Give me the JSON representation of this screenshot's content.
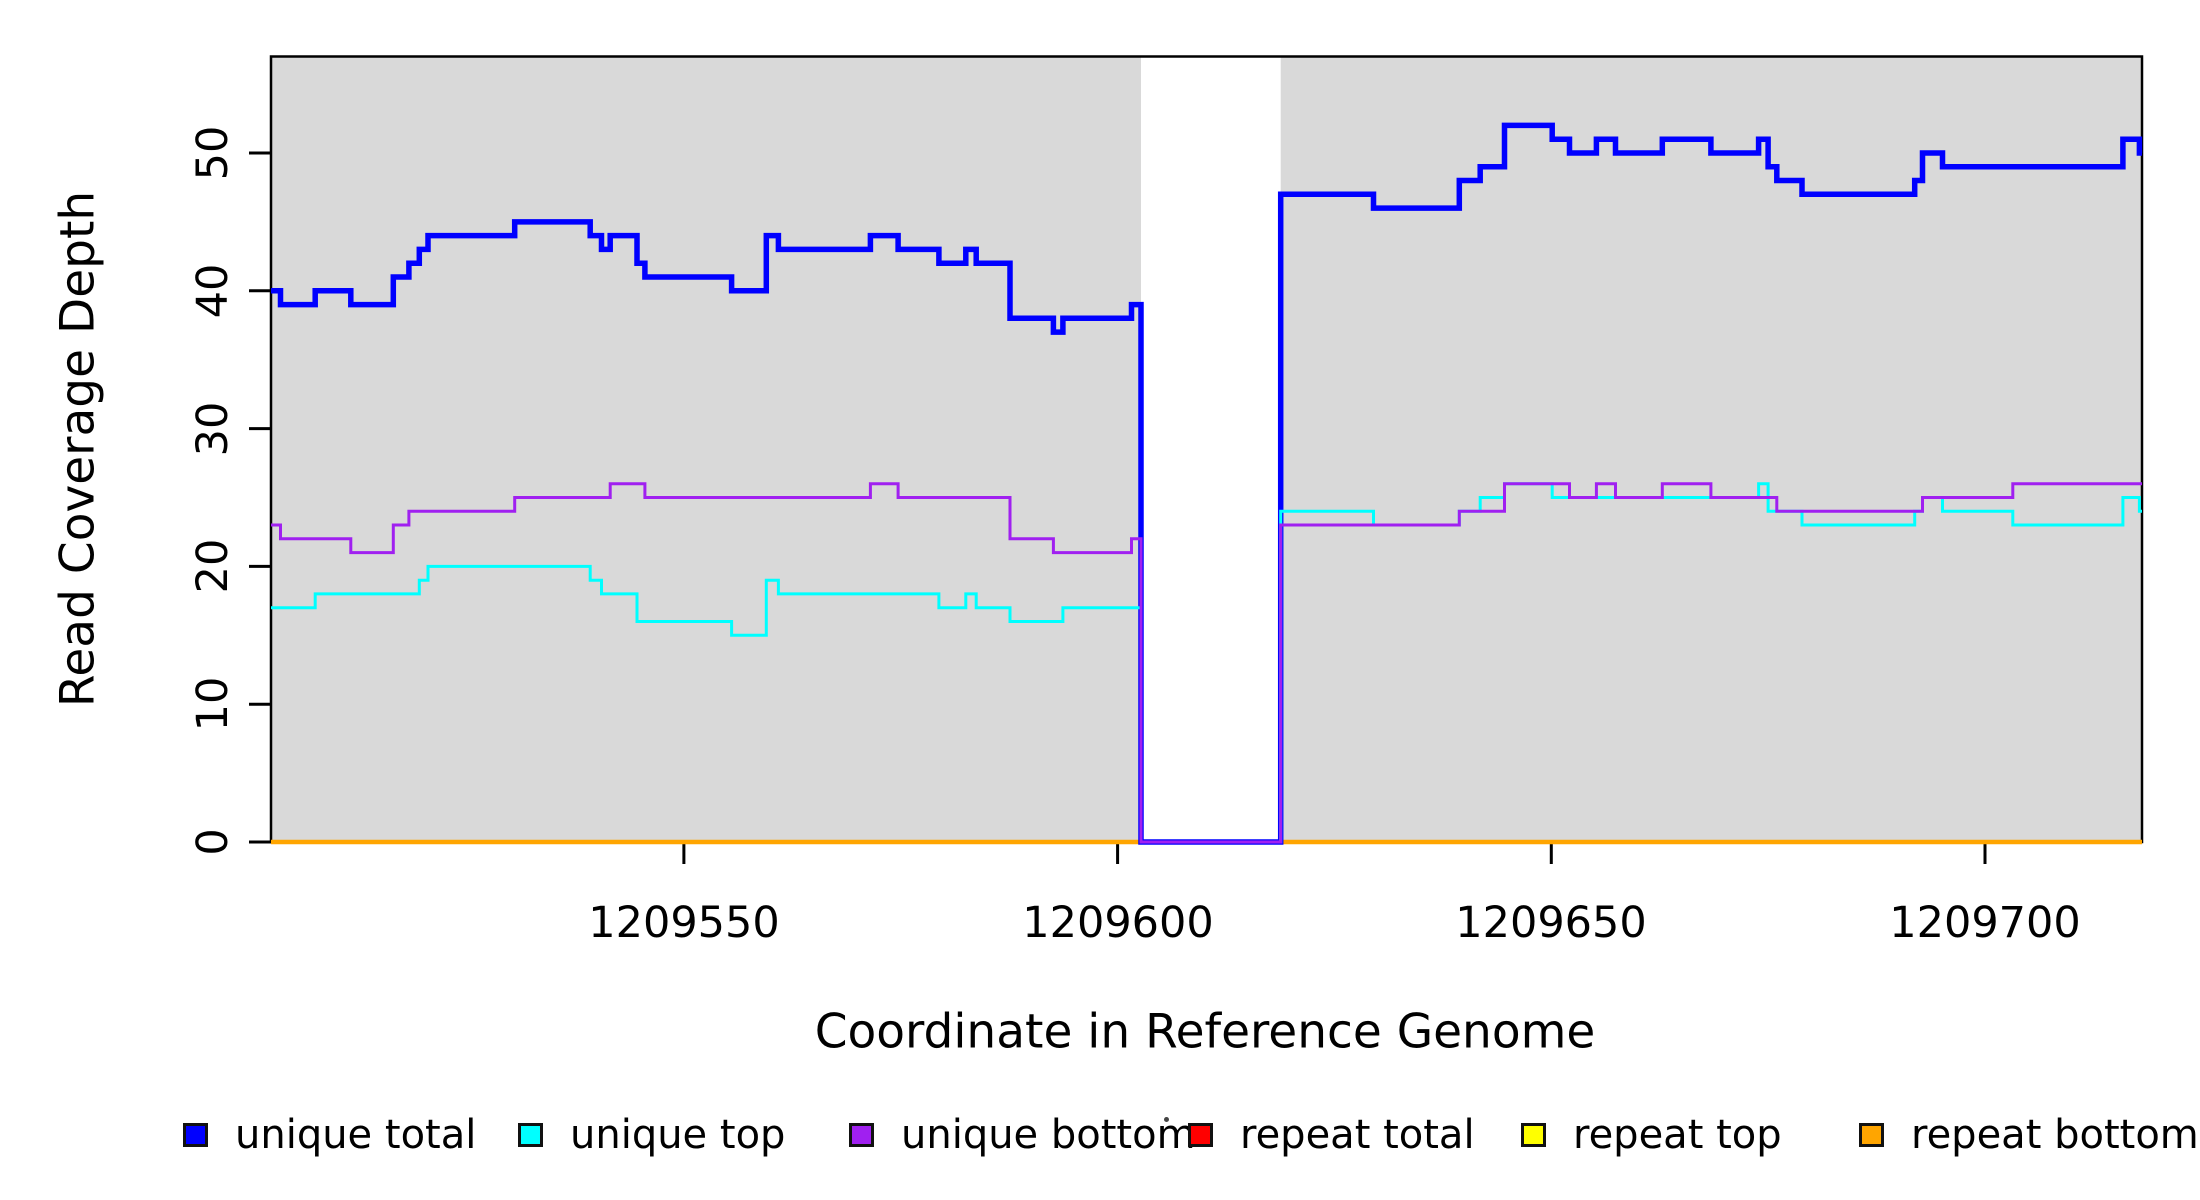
{
  "chart_data": {
    "type": "line",
    "subtype": "step-coverage",
    "title": "",
    "xlabel": "Coordinate in Reference Genome",
    "ylabel": "Read Coverage Depth",
    "xlim": [
      1209502.4,
      1209718.1
    ],
    "ylim": [
      0,
      57
    ],
    "x_ticks": [
      1209550,
      1209600,
      1209650,
      1209700
    ],
    "x_tick_labels": [
      "1209550",
      "1209600",
      "1209650",
      "1209700"
    ],
    "y_ticks": [
      0,
      10,
      20,
      30,
      40,
      50
    ],
    "y_tick_labels": [
      "0",
      "10",
      "20",
      "30",
      "40",
      "50"
    ],
    "grid": false,
    "panel_color": "#d9d9d9",
    "coverage_blocks": [
      [
        1209502.4,
        1209602.7
      ],
      [
        1209618.8,
        1209718.1
      ]
    ],
    "no_data_gap": [
      1209602.7,
      1209618.8
    ],
    "legend_position": "bottom",
    "legend": [
      {
        "label": "unique total",
        "color": "#0000ff"
      },
      {
        "label": "unique top",
        "color": "#00ffff"
      },
      {
        "label": "unique bottom",
        "color": "#a020f0"
      },
      {
        "label": "repeat total",
        "color": "#ff0000"
      },
      {
        "label": "repeat top",
        "color": "#ffff00"
      },
      {
        "label": "repeat bottom",
        "color": "#ffa500"
      }
    ],
    "series": [
      {
        "name": "repeat total",
        "color": "#ff0000",
        "width": 3,
        "steps": [
          [
            1209502.4,
            0
          ]
        ]
      },
      {
        "name": "repeat top",
        "color": "#ffff00",
        "width": 3,
        "steps": [
          [
            1209502.4,
            0
          ]
        ]
      },
      {
        "name": "repeat bottom",
        "color": "#ffa500",
        "width": 4.5,
        "steps": [
          [
            1209502.4,
            0
          ]
        ]
      },
      {
        "name": "unique total",
        "color": "#0000ff",
        "width": 5.5,
        "steps": [
          [
            1209502.4,
            40
          ],
          [
            1209503.5,
            39
          ],
          [
            1209507.5,
            40
          ],
          [
            1209511.6,
            39
          ],
          [
            1209516.5,
            41
          ],
          [
            1209518.3,
            42
          ],
          [
            1209519.5,
            43
          ],
          [
            1209520.5,
            44
          ],
          [
            1209530.5,
            45
          ],
          [
            1209539.2,
            44
          ],
          [
            1209540.5,
            43
          ],
          [
            1209541.5,
            44
          ],
          [
            1209544.6,
            42
          ],
          [
            1209545.5,
            41
          ],
          [
            1209555.5,
            40
          ],
          [
            1209559.5,
            44
          ],
          [
            1209560.9,
            43
          ],
          [
            1209571.5,
            44
          ],
          [
            1209574.7,
            43
          ],
          [
            1209579.4,
            42
          ],
          [
            1209582.5,
            43
          ],
          [
            1209583.7,
            42
          ],
          [
            1209587.6,
            38
          ],
          [
            1209592.6,
            37
          ],
          [
            1209593.7,
            38
          ],
          [
            1209601.6,
            39
          ],
          [
            1209602.7,
            0
          ],
          [
            1209618.8,
            47
          ],
          [
            1209629.5,
            46
          ],
          [
            1209639.4,
            48
          ],
          [
            1209641.8,
            49
          ],
          [
            1209644.6,
            52
          ],
          [
            1209650.1,
            51
          ],
          [
            1209652.1,
            50
          ],
          [
            1209655.2,
            51
          ],
          [
            1209657.4,
            50
          ],
          [
            1209662.8,
            51
          ],
          [
            1209668.4,
            50
          ],
          [
            1209673.9,
            51
          ],
          [
            1209675.0,
            49
          ],
          [
            1209676.0,
            48
          ],
          [
            1209678.9,
            47
          ],
          [
            1209691.9,
            48
          ],
          [
            1209692.8,
            50
          ],
          [
            1209695.1,
            49
          ],
          [
            1209715.9,
            51
          ],
          [
            1209717.8,
            50
          ]
        ]
      },
      {
        "name": "unique top",
        "color": "#00ffff",
        "width": 3,
        "steps": [
          [
            1209502.4,
            17
          ],
          [
            1209507.5,
            18
          ],
          [
            1209519.5,
            19
          ],
          [
            1209520.5,
            20
          ],
          [
            1209539.2,
            19
          ],
          [
            1209540.5,
            18
          ],
          [
            1209544.6,
            16
          ],
          [
            1209555.5,
            15
          ],
          [
            1209559.5,
            19
          ],
          [
            1209560.9,
            18
          ],
          [
            1209579.4,
            17
          ],
          [
            1209582.5,
            18
          ],
          [
            1209583.7,
            17
          ],
          [
            1209587.6,
            16
          ],
          [
            1209593.7,
            17
          ],
          [
            1209602.7,
            0
          ],
          [
            1209618.8,
            24
          ],
          [
            1209629.5,
            23
          ],
          [
            1209639.4,
            24
          ],
          [
            1209641.8,
            25
          ],
          [
            1209644.6,
            26
          ],
          [
            1209650.1,
            25
          ],
          [
            1209673.9,
            26
          ],
          [
            1209675.0,
            24
          ],
          [
            1209678.9,
            23
          ],
          [
            1209691.9,
            24
          ],
          [
            1209692.8,
            25
          ],
          [
            1209695.1,
            24
          ],
          [
            1209703.2,
            23
          ],
          [
            1209715.9,
            25
          ],
          [
            1209717.8,
            24
          ]
        ]
      },
      {
        "name": "unique bottom",
        "color": "#a020f0",
        "width": 3,
        "steps": [
          [
            1209502.4,
            23
          ],
          [
            1209503.5,
            22
          ],
          [
            1209511.6,
            21
          ],
          [
            1209516.5,
            23
          ],
          [
            1209518.3,
            24
          ],
          [
            1209530.5,
            25
          ],
          [
            1209541.5,
            26
          ],
          [
            1209545.5,
            25
          ],
          [
            1209571.5,
            26
          ],
          [
            1209574.7,
            25
          ],
          [
            1209587.6,
            22
          ],
          [
            1209592.6,
            21
          ],
          [
            1209601.6,
            22
          ],
          [
            1209602.7,
            0
          ],
          [
            1209618.8,
            23
          ],
          [
            1209639.4,
            24
          ],
          [
            1209644.6,
            26
          ],
          [
            1209652.1,
            25
          ],
          [
            1209655.2,
            26
          ],
          [
            1209657.4,
            25
          ],
          [
            1209662.8,
            26
          ],
          [
            1209668.4,
            25
          ],
          [
            1209676.0,
            24
          ],
          [
            1209692.8,
            25
          ],
          [
            1209703.2,
            26
          ]
        ]
      }
    ]
  }
}
